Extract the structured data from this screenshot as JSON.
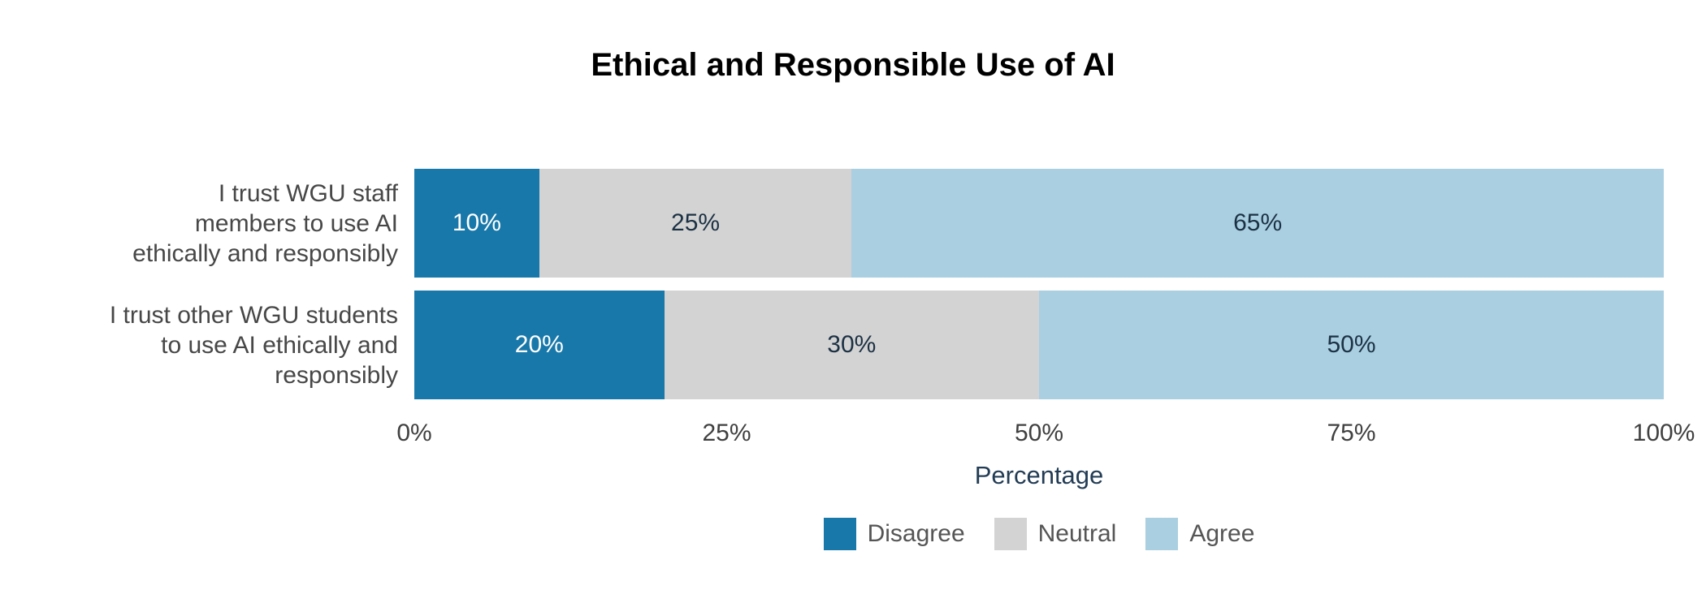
{
  "title": "Ethical and Responsible Use of AI",
  "colors": {
    "background": "#ffffff",
    "title_text": "#000000",
    "category_text": "#474747",
    "tick_text": "#404040",
    "axis_title_text": "#223c55",
    "legend_text": "#555555",
    "disagree": "#1878a9",
    "neutral": "#d3d3d3",
    "agree": "#a9cfe1",
    "value_label_dark": "#1c3144",
    "value_label_light": "#ffffff"
  },
  "chart_data": {
    "type": "bar",
    "orientation": "horizontal",
    "stacked": true,
    "stacked_total": 100,
    "title": "Ethical and Responsible Use of AI",
    "categories": [
      "I trust WGU staff\nmembers to use AI\nethically and responsibly",
      "I trust other WGU students\nto use AI ethically and\nresponsibly"
    ],
    "series": [
      {
        "name": "Disagree",
        "color": "#1878a9",
        "label_color": "#ffffff",
        "values": [
          10,
          20
        ]
      },
      {
        "name": "Neutral",
        "color": "#d3d3d3",
        "label_color": "#1c3144",
        "values": [
          25,
          30
        ]
      },
      {
        "name": "Agree",
        "color": "#a9cfe1",
        "label_color": "#1c3144",
        "values": [
          65,
          50
        ]
      }
    ],
    "value_labels": [
      [
        "10%",
        "25%",
        "65%"
      ],
      [
        "20%",
        "30%",
        "50%"
      ]
    ],
    "xlabel": "Percentage",
    "x_ticks": [
      "0%",
      "25%",
      "50%",
      "75%",
      "100%"
    ],
    "xlim": [
      0,
      100
    ],
    "grid": false,
    "legend_position": "bottom"
  }
}
